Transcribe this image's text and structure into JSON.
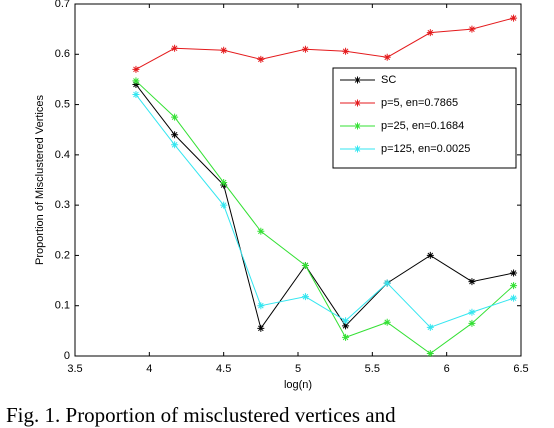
{
  "chart_data": {
    "type": "line",
    "xlabel": "log(n)",
    "ylabel": "Proportion of Misclustered Vertices",
    "caption": "Fig. 1. Proportion of misclustered vertices and",
    "x": [
      3.91,
      4.17,
      4.5,
      4.75,
      5.05,
      5.32,
      5.6,
      5.89,
      6.17,
      6.45
    ],
    "series": [
      {
        "name": "SC",
        "color": "#000000",
        "values": [
          0.54,
          0.44,
          0.34,
          0.055,
          0.18,
          0.06,
          0.145,
          0.2,
          0.148,
          0.165
        ]
      },
      {
        "name": "p=5, en=0.7865",
        "color": "#e41a1c",
        "values": [
          0.57,
          0.612,
          0.608,
          0.59,
          0.61,
          0.606,
          0.594,
          0.643,
          0.65,
          0.672
        ]
      },
      {
        "name": "p=25, en=0.1684",
        "color": "#33e033",
        "values": [
          0.547,
          0.475,
          0.345,
          0.248,
          0.18,
          0.037,
          0.067,
          0.005,
          0.065,
          0.14
        ]
      },
      {
        "name": "p=125, en=0.0025",
        "color": "#33e6f0",
        "values": [
          0.52,
          0.42,
          0.3,
          0.1,
          0.118,
          0.07,
          0.145,
          0.057,
          0.087,
          0.115
        ]
      }
    ],
    "xlim": [
      3.5,
      6.5
    ],
    "xticks": [
      3.5,
      4,
      4.5,
      5,
      5.5,
      6,
      6.5
    ],
    "ylim": [
      0,
      0.7
    ],
    "yticks": [
      0,
      0.1,
      0.2,
      0.3,
      0.4,
      0.5,
      0.6,
      0.7
    ],
    "grid": false,
    "legend": "upper right"
  }
}
